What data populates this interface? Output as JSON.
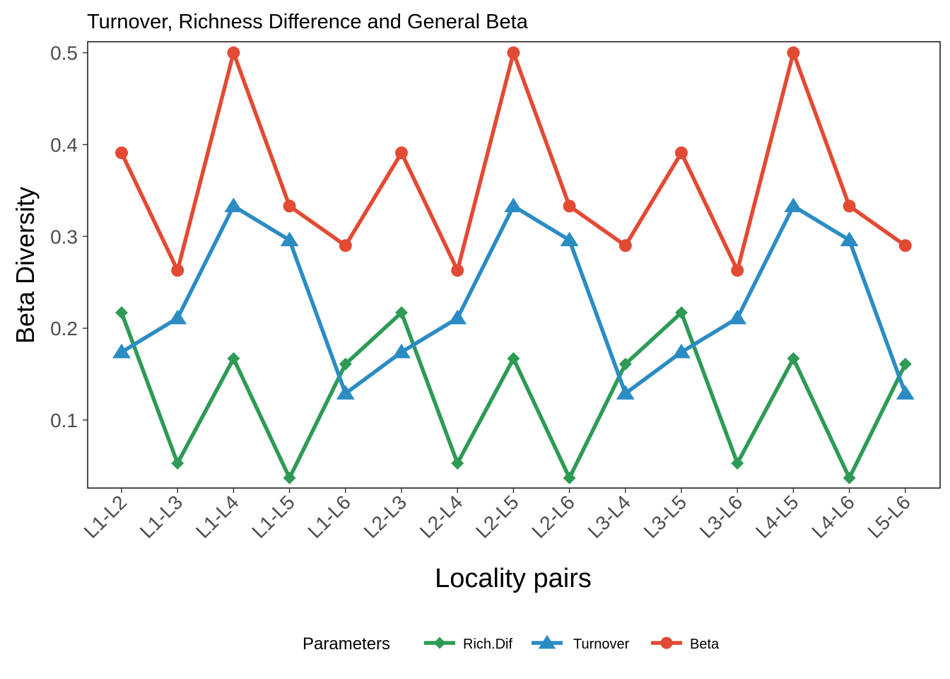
{
  "chart_data": {
    "type": "line",
    "title": "Turnover, Richness Difference and General Beta",
    "xlabel": "Locality pairs",
    "ylabel": "Beta Diversity",
    "categories": [
      "L1-L2",
      "L1-L3",
      "L1-L4",
      "L1-L5",
      "L1-L6",
      "L2-L3",
      "L2-L4",
      "L2-L5",
      "L2-L6",
      "L3-L4",
      "L3-L5",
      "L3-L6",
      "L4-L5",
      "L4-L6",
      "L5-L6"
    ],
    "yticks": [
      "0.1",
      "0.2",
      "0.3",
      "0.4",
      "0.5"
    ],
    "ylim": [
      0.026,
      0.512
    ],
    "grid": false,
    "legend": {
      "title": "Parameters",
      "position": "bottom"
    },
    "series": [
      {
        "name": "Rich.Dif",
        "color": "#2e9b55",
        "marker": "diamond",
        "values": [
          0.217,
          0.053,
          0.167,
          0.037,
          0.161,
          0.217,
          0.053,
          0.167,
          0.037,
          0.161,
          0.217,
          0.053,
          0.167,
          0.037,
          0.161
        ]
      },
      {
        "name": "Turnover",
        "color": "#2b8cc4",
        "marker": "triangle",
        "values": [
          0.174,
          0.211,
          0.333,
          0.296,
          0.129,
          0.174,
          0.211,
          0.333,
          0.296,
          0.129,
          0.174,
          0.211,
          0.333,
          0.296,
          0.129
        ]
      },
      {
        "name": "Beta",
        "color": "#e34a33",
        "marker": "circle",
        "values": [
          0.391,
          0.263,
          0.5,
          0.333,
          0.29,
          0.391,
          0.263,
          0.5,
          0.333,
          0.29,
          0.391,
          0.263,
          0.5,
          0.333,
          0.29
        ]
      }
    ]
  }
}
